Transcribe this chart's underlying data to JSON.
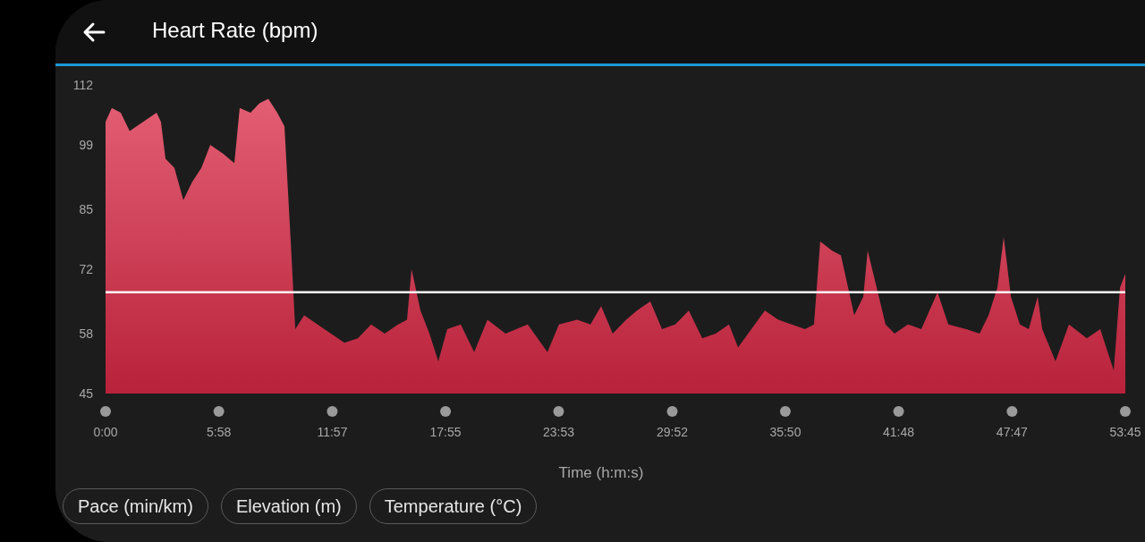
{
  "chart_data": {
    "type": "area",
    "title": "Heart Rate (bpm)",
    "xlabel": "Time (h:m:s)",
    "annotations": [
      "Pace (min/km)",
      "Elevation (m)",
      "Temperature (°C)"
    ],
    "x": [
      0,
      0.33,
      0.8,
      1.27,
      1.98,
      2.69,
      2.92,
      3.16,
      3.63,
      4.1,
      4.57,
      5.05,
      5.52,
      6.22,
      6.79,
      7.07,
      7.64,
      8.11,
      8.58,
      9.05,
      9.43,
      9.76,
      10.0,
      10.47,
      11.17,
      11.88,
      12.59,
      13.3,
      14.0,
      14.71,
      15.42,
      15.89,
      16.13,
      16.6,
      17.07,
      17.54,
      18.01,
      18.72,
      19.43,
      20.13,
      21.08,
      22.25,
      23.29,
      23.9,
      24.85,
      25.56,
      26.12,
      26.73,
      27.44,
      28.01,
      28.71,
      29.33,
      30.03,
      30.74,
      31.45,
      32.16,
      32.86,
      33.34,
      34.04,
      34.75,
      35.46,
      36.16,
      36.87,
      37.34,
      37.67,
      38.29,
      38.76,
      39.46,
      39.94,
      40.17,
      40.88,
      41.11,
      41.59,
      42.29,
      43.0,
      43.85,
      44.42,
      45.36,
      46.07,
      46.54,
      47.01,
      47.34,
      47.72,
      48.19,
      48.66,
      49.13,
      49.37,
      50.07,
      50.78,
      51.72,
      52.43,
      52.9,
      53.14,
      53.47,
      53.75
    ],
    "values": [
      104,
      107,
      106,
      102,
      104,
      106,
      104,
      96,
      94,
      87,
      91,
      94,
      99,
      97,
      95,
      107,
      106,
      108,
      109,
      106,
      103,
      78,
      59,
      62,
      60,
      58,
      56,
      57,
      60,
      58,
      60,
      61,
      72,
      63,
      58,
      52,
      59,
      60,
      54,
      61,
      58,
      60,
      54,
      60,
      61,
      60,
      64,
      58,
      61,
      63,
      65,
      59,
      60,
      63,
      57,
      58,
      60,
      55,
      59,
      63,
      61,
      60,
      59,
      60,
      78,
      76,
      75,
      62,
      66,
      76,
      64,
      60,
      58,
      60,
      59,
      67,
      60,
      59,
      58,
      62,
      68,
      79,
      66,
      60,
      59,
      66,
      59,
      52,
      60,
      57,
      59,
      53,
      50,
      68,
      71
    ],
    "color": "#d92844",
    "xlim": [
      0,
      53.75
    ],
    "xticks": [
      {
        "value": 0,
        "label": "0:00"
      },
      {
        "value": 5.97,
        "label": "5:58"
      },
      {
        "value": 11.95,
        "label": "11:57"
      },
      {
        "value": 17.92,
        "label": "17:55"
      },
      {
        "value": 23.88,
        "label": "23:53"
      },
      {
        "value": 29.87,
        "label": "29:52"
      },
      {
        "value": 35.83,
        "label": "35:50"
      },
      {
        "value": 41.8,
        "label": "41:48"
      },
      {
        "value": 47.78,
        "label": "47:47"
      },
      {
        "value": 53.75,
        "label": "53:45"
      }
    ],
    "ylim": [
      45,
      112
    ],
    "yticks": [
      45,
      58,
      72,
      85,
      99,
      112
    ],
    "ref_lines": [
      {
        "axis": "y",
        "value": 67,
        "color": "#ffffff"
      }
    ],
    "grid": false,
    "legend": false
  }
}
